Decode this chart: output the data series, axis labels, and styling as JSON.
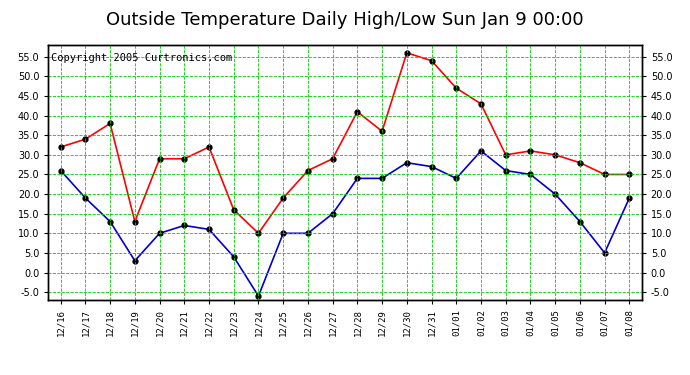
{
  "title": "Outside Temperature Daily High/Low Sun Jan 9 00:00",
  "copyright": "Copyright 2005 Curtronics.com",
  "x_labels": [
    "12/16",
    "12/17",
    "12/18",
    "12/19",
    "12/20",
    "12/21",
    "12/22",
    "12/23",
    "12/24",
    "12/25",
    "12/26",
    "12/27",
    "12/28",
    "12/29",
    "12/30",
    "12/31",
    "01/01",
    "01/02",
    "01/03",
    "01/04",
    "01/05",
    "01/06",
    "01/07",
    "01/08"
  ],
  "high_values": [
    32,
    34,
    38,
    13,
    29,
    29,
    32,
    16,
    10,
    19,
    26,
    29,
    41,
    36,
    56,
    54,
    47,
    43,
    30,
    31,
    30,
    28,
    25,
    25
  ],
  "low_values": [
    26,
    19,
    13,
    3,
    10,
    12,
    11,
    4,
    -6,
    10,
    10,
    15,
    24,
    24,
    28,
    27,
    24,
    31,
    26,
    25,
    20,
    13,
    5,
    19
  ],
  "high_color": "#ff0000",
  "low_color": "#0000cc",
  "marker_color": "#000000",
  "bg_color": "#ffffff",
  "plot_bg_color": "#ffffff",
  "grid_color": "#00cc00",
  "border_color": "#000000",
  "ylim": [
    -7,
    58
  ],
  "yticks": [
    -5.0,
    0.0,
    5.0,
    10.0,
    15.0,
    20.0,
    25.0,
    30.0,
    35.0,
    40.0,
    45.0,
    50.0,
    55.0
  ],
  "title_fontsize": 13,
  "copyright_fontsize": 7.5
}
